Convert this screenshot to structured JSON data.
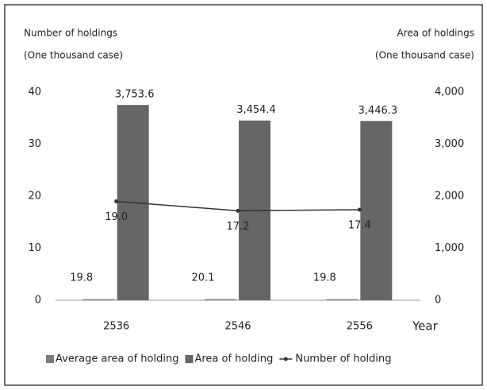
{
  "chart_data": {
    "type": "bar",
    "y_label": "Number of holdings",
    "y_label_unit": "(One thousand case)",
    "y2_label": "Area of holdings",
    "y2_label_unit": "(One thousand case)",
    "x_label": "Year",
    "categories": [
      "2536",
      "2546",
      "2556"
    ],
    "series": [
      {
        "name": "Average area of holding",
        "type": "bar",
        "axis": "y2",
        "color": "#7a7a7a",
        "values": [
          19.8,
          20.1,
          19.8
        ]
      },
      {
        "name": "Area of holding",
        "type": "bar",
        "axis": "y2",
        "color": "#666666",
        "values": [
          3753.6,
          3454.4,
          3446.3
        ],
        "value_labels": [
          "3,753.6",
          "3,454.4",
          "3,446.3"
        ]
      },
      {
        "name": "Number of holding",
        "type": "line",
        "color": "#333333",
        "values": [
          19.0,
          17.2,
          17.4
        ],
        "value_labels": [
          "19.0",
          "17.2",
          "17.4"
        ]
      }
    ],
    "ylim": [
      0,
      40
    ],
    "yticks": [
      0,
      10,
      20,
      30,
      40
    ],
    "y2lim": [
      0,
      4000
    ],
    "y2ticks": [
      0,
      {
        "value": 1000,
        "label": "1,000"
      },
      {
        "value": 2000,
        "label": "2,000"
      },
      {
        "value": 3000,
        "label": "3,000"
      },
      {
        "value": 4000,
        "label": "4,000"
      }
    ],
    "grid": false,
    "legend": "bottom"
  }
}
